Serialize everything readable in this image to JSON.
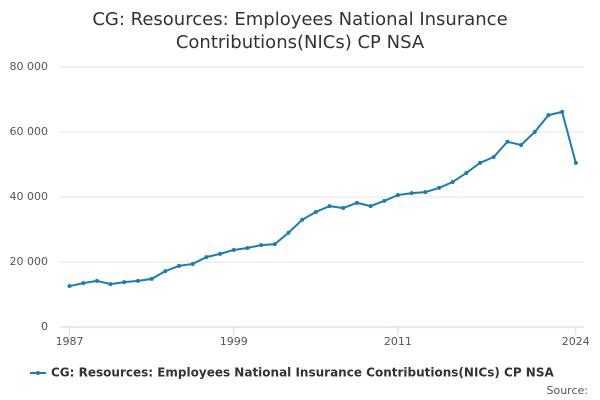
{
  "chart_data": {
    "type": "line",
    "title": "CG: Resources: Employees National Insurance Contributions(NICs) CP NSA",
    "x": [
      1987,
      1988,
      1989,
      1990,
      1991,
      1992,
      1993,
      1994,
      1995,
      1996,
      1997,
      1998,
      1999,
      2000,
      2001,
      2002,
      2003,
      2004,
      2005,
      2006,
      2007,
      2008,
      2009,
      2010,
      2011,
      2012,
      2013,
      2014,
      2015,
      2016,
      2017,
      2018,
      2019,
      2020,
      2021,
      2022,
      2023,
      2024
    ],
    "series": [
      {
        "name": "CG: Resources: Employees National Insurance Contributions(NICs) CP NSA",
        "color": "#1a7db6",
        "values": [
          12600,
          13500,
          14200,
          13200,
          13800,
          14200,
          14800,
          17200,
          18800,
          19400,
          21500,
          22500,
          23700,
          24300,
          25200,
          25500,
          29000,
          33000,
          35400,
          37200,
          36600,
          38200,
          37200,
          38800,
          40600,
          41200,
          41500,
          42800,
          44600,
          47400,
          50500,
          52300,
          57000,
          56000,
          60000,
          65200,
          66200,
          50500
        ]
      }
    ],
    "xlim": [
      1986.3,
      2024.6
    ],
    "xticks": [
      1987,
      1999,
      2011,
      2024
    ],
    "ylim": [
      0,
      80000
    ],
    "yticks": [
      0,
      {
        "value": 20000,
        "label": "20 000"
      },
      {
        "value": 40000,
        "label": "40 000"
      },
      {
        "value": 60000,
        "label": "60 000"
      },
      {
        "value": 80000,
        "label": "80 000"
      }
    ],
    "grid": true,
    "source": "Source:"
  }
}
